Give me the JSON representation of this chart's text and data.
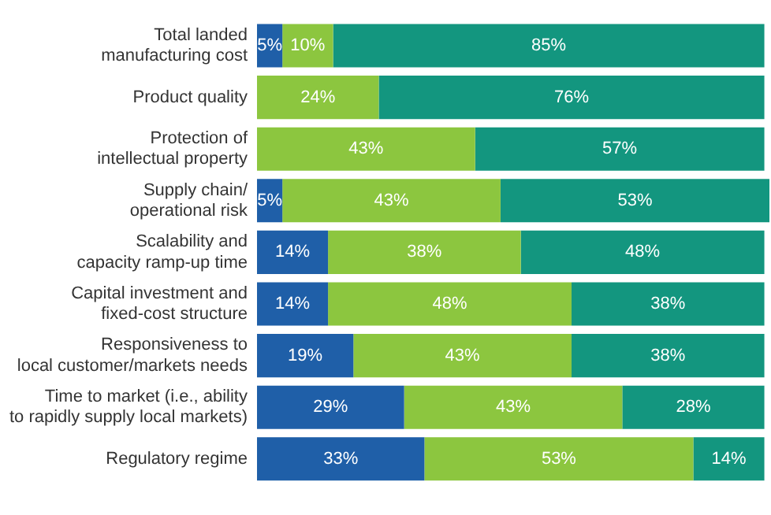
{
  "chart_data": {
    "type": "bar",
    "orientation": "horizontal",
    "stacked": true,
    "tick_labels": "y",
    "grid": false,
    "legend": false,
    "xlim": [
      0,
      101
    ],
    "categories": [
      "Total landed\nmanufacturing cost",
      "Product quality",
      "Protection of\nintellectual property",
      "Supply chain/\noperational risk",
      "Scalability and\ncapacity ramp-up time",
      "Capital investment and\nfixed-cost structure",
      "Responsiveness to\nlocal customer/markets needs",
      "Time to market (i.e., ability\nto rapidly supply local markets)",
      "Regulatory regime"
    ],
    "series": [
      {
        "color": "#1f5fa8",
        "values": [
          5,
          0,
          0,
          5,
          14,
          14,
          19,
          29,
          33
        ],
        "value_labels": [
          "5%",
          null,
          null,
          "5%",
          "14%",
          "14%",
          "19%",
          "29%",
          "33%"
        ]
      },
      {
        "color": "#8cc63f",
        "values": [
          10,
          24,
          43,
          43,
          38,
          48,
          43,
          43,
          53
        ],
        "value_labels": [
          "10%",
          "24%",
          "43%",
          "43%",
          "38%",
          "48%",
          "43%",
          "43%",
          "53%"
        ]
      },
      {
        "color": "#13967f",
        "values": [
          85,
          76,
          57,
          53,
          48,
          38,
          38,
          28,
          14
        ],
        "value_labels": [
          "85%",
          "76%",
          "57%",
          "53%",
          "48%",
          "38%",
          "38%",
          "28%",
          "14%"
        ]
      }
    ]
  }
}
